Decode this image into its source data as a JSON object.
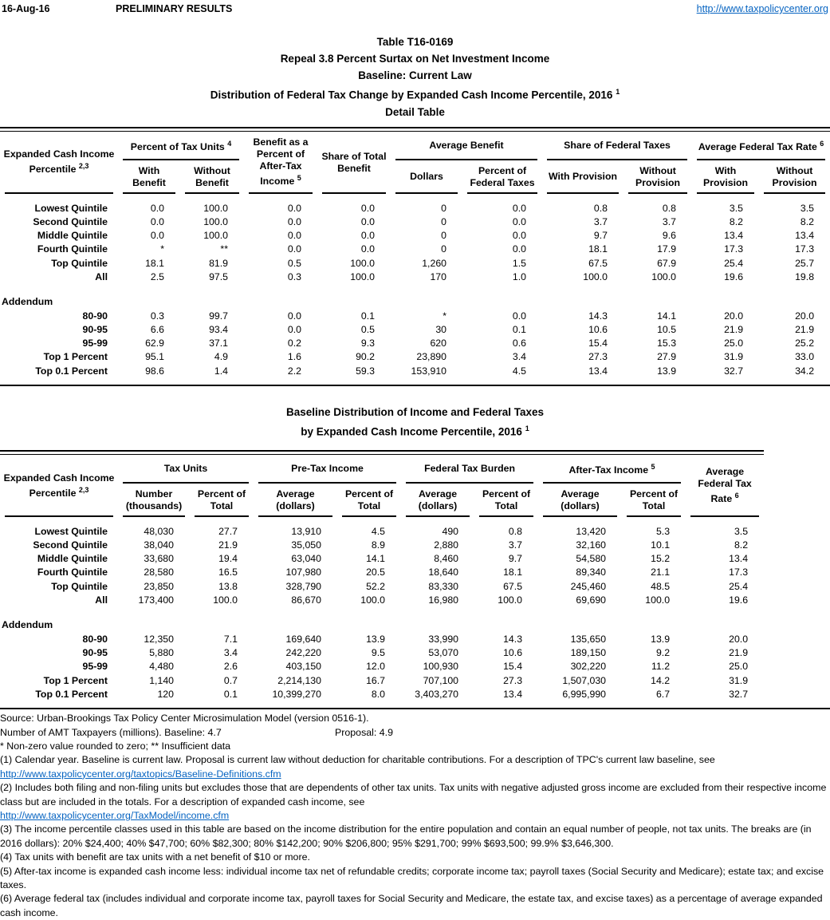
{
  "colors": {
    "link_blue": "#0563C1",
    "text": "#000000",
    "background": "#ffffff"
  },
  "page": {
    "date": "16-Aug-16",
    "status": "PRELIMINARY RESULTS",
    "site_link": "http://www.taxpolicycenter.org"
  },
  "title": {
    "line1": "Table T16-0169",
    "line2": "Repeal 3.8 Percent Surtax on Net Investment Income",
    "line3": "Baseline: Current Law",
    "line4": "Distribution of Federal Tax Change by Expanded Cash Income Percentile, 2016",
    "line4_sup": "1",
    "line5": "Detail Table"
  },
  "table1": {
    "row_header": {
      "line1": "Expanded Cash Income",
      "line2": "Percentile",
      "sup": "2,3"
    },
    "groups": [
      {
        "text": "Percent of Tax Units",
        "sup": "4",
        "cols": [
          "With Benefit",
          "Without Benefit"
        ]
      },
      {
        "text": "Benefit as a Percent of After-Tax Income",
        "sup": "5"
      },
      {
        "text": "Share of Total Benefit"
      },
      {
        "text": "Average Benefit",
        "cols": [
          "Dollars",
          "Percent of Federal Taxes"
        ]
      },
      {
        "text": "Share of Federal Taxes",
        "cols": [
          "With Provision",
          "Without Provision"
        ]
      },
      {
        "text": "Average Federal Tax Rate",
        "sup": "6",
        "cols": [
          "With Provision",
          "Without Provision"
        ]
      }
    ],
    "rows": [
      {
        "label": "Lowest Quintile",
        "values": [
          "0.0",
          "100.0",
          "0.0",
          "0.0",
          "0",
          "0.0",
          "0.8",
          "0.8",
          "3.5",
          "3.5"
        ]
      },
      {
        "label": "Second Quintile",
        "values": [
          "0.0",
          "100.0",
          "0.0",
          "0.0",
          "0",
          "0.0",
          "3.7",
          "3.7",
          "8.2",
          "8.2"
        ]
      },
      {
        "label": "Middle Quintile",
        "values": [
          "0.0",
          "100.0",
          "0.0",
          "0.0",
          "0",
          "0.0",
          "9.7",
          "9.6",
          "13.4",
          "13.4"
        ]
      },
      {
        "label": "Fourth Quintile",
        "values": [
          "*",
          "**",
          "0.0",
          "0.0",
          "0",
          "0.0",
          "18.1",
          "17.9",
          "17.3",
          "17.3"
        ]
      },
      {
        "label": "Top Quintile",
        "values": [
          "18.1",
          "81.9",
          "0.5",
          "100.0",
          "1,260",
          "1.5",
          "67.5",
          "67.9",
          "25.4",
          "25.7"
        ]
      },
      {
        "label": "All",
        "values": [
          "2.5",
          "97.5",
          "0.3",
          "100.0",
          "170",
          "1.0",
          "100.0",
          "100.0",
          "19.6",
          "19.8"
        ]
      }
    ],
    "addendum_label": "Addendum",
    "addendum_rows": [
      {
        "label": "80-90",
        "values": [
          "0.3",
          "99.7",
          "0.0",
          "0.1",
          "*",
          "0.0",
          "14.3",
          "14.1",
          "20.0",
          "20.0"
        ]
      },
      {
        "label": "90-95",
        "values": [
          "6.6",
          "93.4",
          "0.0",
          "0.5",
          "30",
          "0.1",
          "10.6",
          "10.5",
          "21.9",
          "21.9"
        ]
      },
      {
        "label": "95-99",
        "values": [
          "62.9",
          "37.1",
          "0.2",
          "9.3",
          "620",
          "0.6",
          "15.4",
          "15.3",
          "25.0",
          "25.2"
        ]
      },
      {
        "label": "Top 1 Percent",
        "values": [
          "95.1",
          "4.9",
          "1.6",
          "90.2",
          "23,890",
          "3.4",
          "27.3",
          "27.9",
          "31.9",
          "33.0"
        ]
      },
      {
        "label": "Top 0.1 Percent",
        "values": [
          "98.6",
          "1.4",
          "2.2",
          "59.3",
          "153,910",
          "4.5",
          "13.4",
          "13.9",
          "32.7",
          "34.2"
        ]
      }
    ]
  },
  "table2": {
    "title": {
      "line1": "Baseline Distribution of Income and Federal Taxes",
      "line2": "by Expanded Cash Income Percentile, 2016",
      "line2_sup": "1"
    },
    "row_header": {
      "line1": "Expanded Cash Income",
      "line2": "Percentile",
      "sup": "2,3"
    },
    "groups": [
      {
        "text": "Tax Units",
        "cols": [
          "Number (thousands)",
          "Percent of Total"
        ]
      },
      {
        "text": "Pre-Tax Income",
        "cols": [
          "Average (dollars)",
          "Percent of Total"
        ]
      },
      {
        "text": "Federal Tax Burden",
        "cols": [
          "Average (dollars)",
          "Percent of Total"
        ]
      },
      {
        "text": "After-Tax Income",
        "sup": "5",
        "cols": [
          "Average (dollars)",
          "Percent of Total"
        ]
      },
      {
        "text": "Average Federal Tax Rate",
        "sup": "6"
      }
    ],
    "rows": [
      {
        "label": "Lowest Quintile",
        "values": [
          "48,030",
          "27.7",
          "13,910",
          "4.5",
          "490",
          "0.8",
          "13,420",
          "5.3",
          "3.5"
        ]
      },
      {
        "label": "Second Quintile",
        "values": [
          "38,040",
          "21.9",
          "35,050",
          "8.9",
          "2,880",
          "3.7",
          "32,160",
          "10.1",
          "8.2"
        ]
      },
      {
        "label": "Middle Quintile",
        "values": [
          "33,680",
          "19.4",
          "63,040",
          "14.1",
          "8,460",
          "9.7",
          "54,580",
          "15.2",
          "13.4"
        ]
      },
      {
        "label": "Fourth Quintile",
        "values": [
          "28,580",
          "16.5",
          "107,980",
          "20.5",
          "18,640",
          "18.1",
          "89,340",
          "21.1",
          "17.3"
        ]
      },
      {
        "label": "Top Quintile",
        "values": [
          "23,850",
          "13.8",
          "328,790",
          "52.2",
          "83,330",
          "67.5",
          "245,460",
          "48.5",
          "25.4"
        ]
      },
      {
        "label": "All",
        "values": [
          "173,400",
          "100.0",
          "86,670",
          "100.0",
          "16,980",
          "100.0",
          "69,690",
          "100.0",
          "19.6"
        ]
      }
    ],
    "addendum_label": "Addendum",
    "addendum_rows": [
      {
        "label": "80-90",
        "values": [
          "12,350",
          "7.1",
          "169,640",
          "13.9",
          "33,990",
          "14.3",
          "135,650",
          "13.9",
          "20.0"
        ]
      },
      {
        "label": "90-95",
        "values": [
          "5,880",
          "3.4",
          "242,220",
          "9.5",
          "53,070",
          "10.6",
          "189,150",
          "9.2",
          "21.9"
        ]
      },
      {
        "label": "95-99",
        "values": [
          "4,480",
          "2.6",
          "403,150",
          "12.0",
          "100,930",
          "15.4",
          "302,220",
          "11.2",
          "25.0"
        ]
      },
      {
        "label": "Top 1 Percent",
        "values": [
          "1,140",
          "0.7",
          "2,214,130",
          "16.7",
          "707,100",
          "27.3",
          "1,507,030",
          "14.2",
          "31.9"
        ]
      },
      {
        "label": "Top 0.1 Percent",
        "values": [
          "120",
          "0.1",
          "10,399,270",
          "8.0",
          "3,403,270",
          "13.4",
          "6,995,990",
          "6.7",
          "32.7"
        ]
      }
    ]
  },
  "footnotes": [
    {
      "text": "Source: Urban-Brookings Tax Policy Center Microsimulation Model (version 0516-1)."
    },
    {
      "text": "Number of AMT Taxpayers (millions).  Baseline: 4.7",
      "right": "Proposal: 4.9"
    },
    {
      "text": "* Non-zero value rounded to zero; ** Insufficient data"
    },
    {
      "text": "(1) Calendar year. Baseline is current law. Proposal is current law without deduction for charitable contributions. For a description of TPC's current law baseline, see"
    },
    {
      "text": "http://www.taxpolicycenter.org/taxtopics/Baseline-Definitions.cfm",
      "link": true
    },
    {
      "text": "(2) Includes both filing and non-filing units but excludes those that are dependents of other tax units. Tax units with negative adjusted gross income are excluded from their respective income class but are included in the totals. For a description of expanded cash income, see"
    },
    {
      "text": "http://www.taxpolicycenter.org/TaxModel/income.cfm",
      "link": true
    },
    {
      "text": "(3) The income percentile classes used in this table are based on the income distribution for the entire population and contain an equal number of people, not tax units. The breaks are (in 2016 dollars): 20% $24,400; 40% $47,700; 60% $82,300; 80% $142,200; 90% $206,800; 95% $291,700; 99% $693,500; 99.9% $3,646,300."
    },
    {
      "text": "(4) Tax units with benefit are tax units with a net benefit of $10 or more."
    },
    {
      "text": "(5) After-tax income is expanded cash income less: individual income tax net of refundable credits; corporate income tax; payroll taxes (Social Security and Medicare); estate tax; and excise taxes."
    },
    {
      "text": "(6) Average federal tax (includes individual and corporate income tax, payroll taxes for Social Security and Medicare, the estate tax, and excise taxes) as a percentage of average expanded cash income."
    }
  ]
}
